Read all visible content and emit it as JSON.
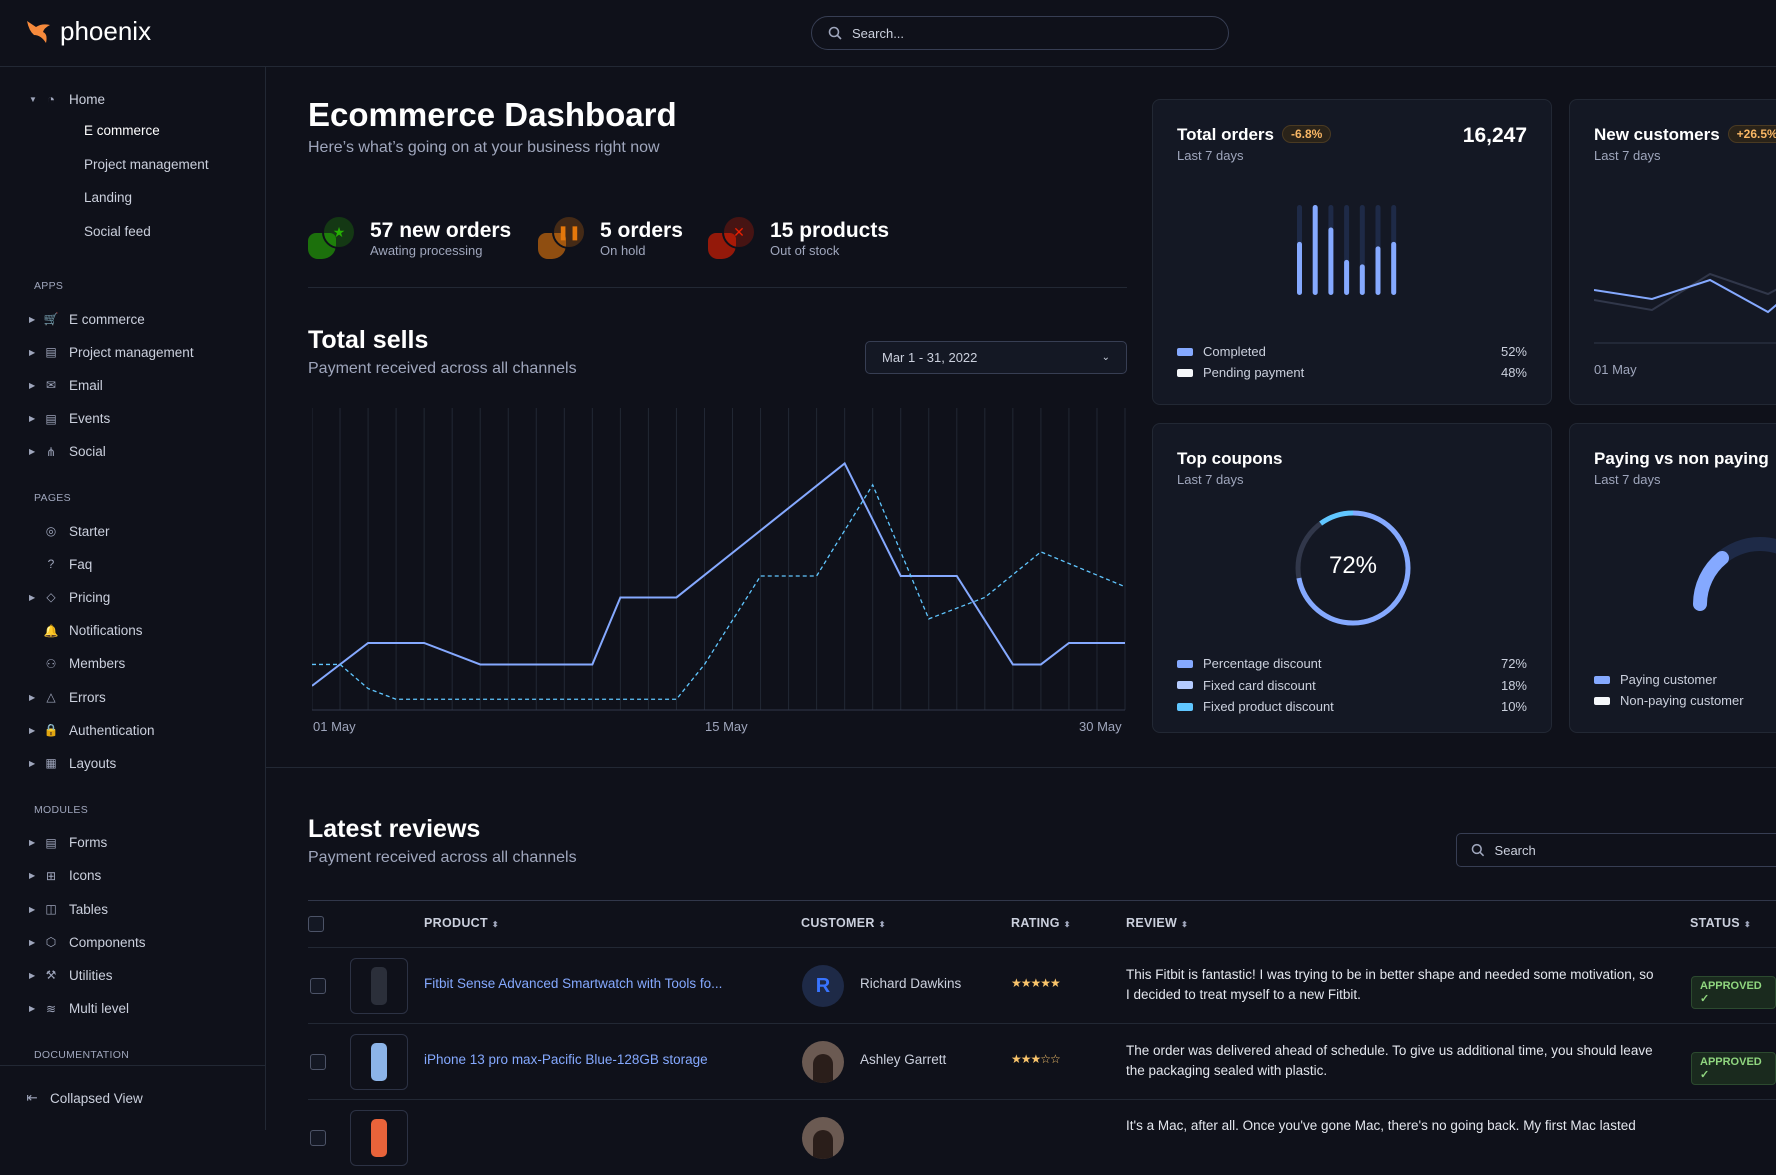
{
  "app": {
    "name": "phoenix"
  },
  "search": {
    "placeholder": "Search..."
  },
  "sidebar": {
    "home": {
      "label": "Home",
      "children": [
        "E commerce",
        "Project management",
        "Landing",
        "Social feed"
      ],
      "active": "E commerce"
    },
    "sections": [
      {
        "title": "APPS",
        "items": [
          {
            "label": "E commerce",
            "icon": "cart-icon"
          },
          {
            "label": "Project management",
            "icon": "clipboard-icon"
          },
          {
            "label": "Email",
            "icon": "mail-icon"
          },
          {
            "label": "Events",
            "icon": "clipboard-icon"
          },
          {
            "label": "Social",
            "icon": "share-icon"
          }
        ]
      },
      {
        "title": "PAGES",
        "items": [
          {
            "label": "Starter",
            "icon": "compass-icon"
          },
          {
            "label": "Faq",
            "icon": "help-icon"
          },
          {
            "label": "Pricing",
            "icon": "tag-icon",
            "caret": true
          },
          {
            "label": "Notifications",
            "icon": "bell-icon"
          },
          {
            "label": "Members",
            "icon": "users-icon"
          },
          {
            "label": "Errors",
            "icon": "alert-icon",
            "caret": true
          },
          {
            "label": "Authentication",
            "icon": "lock-icon",
            "caret": true
          },
          {
            "label": "Layouts",
            "icon": "layout-icon",
            "caret": true
          }
        ]
      },
      {
        "title": "MODULES",
        "items": [
          {
            "label": "Forms",
            "icon": "file-icon"
          },
          {
            "label": "Icons",
            "icon": "grid-icon"
          },
          {
            "label": "Tables",
            "icon": "columns-icon"
          },
          {
            "label": "Components",
            "icon": "package-icon"
          },
          {
            "label": "Utilities",
            "icon": "tool-icon"
          },
          {
            "label": "Multi level",
            "icon": "layers-icon"
          }
        ]
      },
      {
        "title": "DOCUMENTATION",
        "items": []
      }
    ],
    "collapse_label": "Collapsed View"
  },
  "header": {
    "title": "Ecommerce Dashboard",
    "subtitle": "Here’s what’s going on at your business right now"
  },
  "stats": [
    {
      "value": "57 new orders",
      "label": "Awating processing",
      "color": "#25b003",
      "icon": "star-icon"
    },
    {
      "value": "5 orders",
      "label": "On hold",
      "color": "#e5780b",
      "icon": "pause-icon"
    },
    {
      "value": "15 products",
      "label": "Out of stock",
      "color": "#ec1f00",
      "icon": "x-icon"
    }
  ],
  "sells": {
    "title": "Total sells",
    "subtitle": "Payment received across all channels",
    "date_range": "Mar 1 - 31, 2022"
  },
  "chart_data": [
    {
      "type": "line",
      "xlabels": [
        "01 May",
        "15 May",
        "30 May"
      ],
      "x_domain": [
        1,
        30
      ],
      "y_range": [
        0,
        100
      ],
      "grid": "vertical",
      "series": [
        {
          "style": "solid",
          "color": "#85a9ff",
          "x": [
            1,
            3,
            5,
            7,
            11,
            12,
            14,
            20,
            22,
            24,
            26,
            27,
            28,
            30
          ],
          "y": [
            9,
            25,
            25,
            17,
            17,
            42,
            42,
            92,
            50,
            50,
            17,
            17,
            25,
            25
          ]
        },
        {
          "style": "dashed",
          "color": "#60c6ff",
          "x": [
            1,
            2,
            3,
            4,
            14,
            15,
            17,
            19,
            21,
            23,
            25,
            27,
            30
          ],
          "y": [
            17,
            17,
            8,
            4,
            4,
            17,
            50,
            50,
            84,
            34,
            42,
            59,
            46
          ]
        }
      ]
    },
    {
      "type": "bar",
      "title": "Total orders",
      "values": [
        0.59,
        1.0,
        0.75,
        0.39,
        0.34,
        0.54,
        0.59
      ],
      "max": 1
    },
    {
      "type": "pie",
      "title": "Top coupons",
      "center_label": "72%",
      "slices": [
        {
          "name": "Percentage discount",
          "value": 72
        },
        {
          "name": "Fixed card discount",
          "value": 18
        },
        {
          "name": "Fixed product discount",
          "value": 10
        }
      ]
    }
  ],
  "cards": {
    "total_orders": {
      "title": "Total orders",
      "badge": "-6.8%",
      "subtitle": "Last 7 days",
      "value": "16,247",
      "legend": [
        {
          "label": "Completed",
          "value": "52%",
          "color": "#85a9ff"
        },
        {
          "label": "Pending payment",
          "value": "48%",
          "color": "#f5f7fa"
        }
      ]
    },
    "new_customers": {
      "title": "New customers",
      "badge": "+26.5%",
      "subtitle": "Last 7 days",
      "xlabel": "01 May"
    },
    "top_coupons": {
      "title": "Top coupons",
      "subtitle": "Last 7 days",
      "center": "72%",
      "legend": [
        {
          "label": "Percentage discount",
          "value": "72%",
          "color": "#85a9ff"
        },
        {
          "label": "Fixed card discount",
          "value": "18%",
          "color": "#b5cbff"
        },
        {
          "label": "Fixed product discount",
          "value": "10%",
          "color": "#60c6ff"
        }
      ]
    },
    "paying": {
      "title": "Paying vs non paying",
      "subtitle": "Last 7 days",
      "legend": [
        {
          "label": "Paying customer",
          "color": "#85a9ff"
        },
        {
          "label": "Non-paying customer",
          "color": "#f5f7fa"
        }
      ]
    }
  },
  "reviews": {
    "title": "Latest reviews",
    "subtitle": "Payment received across all channels",
    "search_placeholder": "Search",
    "columns": [
      "PRODUCT",
      "CUSTOMER",
      "RATING",
      "REVIEW",
      "STATUS"
    ],
    "rows": [
      {
        "product": "Fitbit Sense Advanced Smartwatch with Tools fo...",
        "customer": "Richard Dawkins",
        "initial": "R",
        "rating": 5,
        "stars": "★★★★★",
        "review": "This Fitbit is fantastic! I was trying to be in better shape and needed some motivation, so I decided to treat myself to a new Fitbit.",
        "status": "APPROVED"
      },
      {
        "product": "iPhone 13 pro max-Pacific Blue-128GB storage",
        "customer": "Ashley Garrett",
        "rating": 3,
        "stars": "★★★☆☆",
        "review": "The order was delivered ahead of schedule. To give us additional time, you should leave the packaging sealed with plastic.",
        "status": "APPROVED"
      },
      {
        "product": "",
        "customer": "",
        "review": "It's a Mac, after all. Once you've gone Mac, there's no going back. My first Mac lasted",
        "status": ""
      }
    ]
  }
}
